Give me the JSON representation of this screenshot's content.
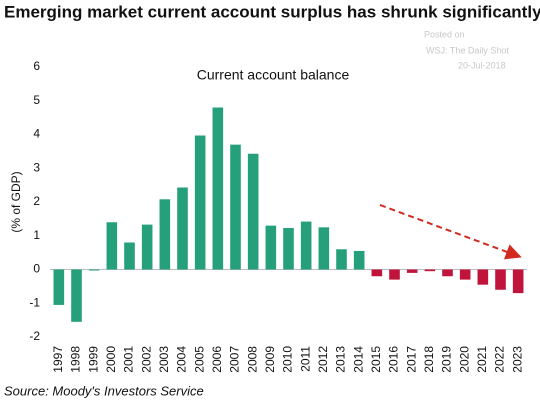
{
  "chart_data": {
    "type": "bar",
    "title": "Emerging market current account surplus has shrunk significantly",
    "subtitle": "Current account balance",
    "notes": [
      "Posted on",
      "WSJ: The Daily Shot",
      "20-Jul-2018"
    ],
    "ylabel": "(% of GDP)",
    "source": "Source: Moody's Investors Service",
    "categories": [
      "1997",
      "1998",
      "1999",
      "2000",
      "2001",
      "2002",
      "2003",
      "2004",
      "2005",
      "2006",
      "2007",
      "2008",
      "2009",
      "2010",
      "2011",
      "2012",
      "2013",
      "2014",
      "2015",
      "2016",
      "2017",
      "2018",
      "2019",
      "2020",
      "2021",
      "2022",
      "2023"
    ],
    "values": [
      -1.05,
      -1.55,
      -0.03,
      1.4,
      0.8,
      1.33,
      2.08,
      2.43,
      3.97,
      4.8,
      3.7,
      3.43,
      1.3,
      1.23,
      1.42,
      1.25,
      0.6,
      0.55,
      -0.2,
      -0.3,
      -0.1,
      -0.05,
      -0.2,
      -0.3,
      -0.45,
      -0.6,
      -0.7
    ],
    "colors": [
      "#26a07a",
      "#26a07a",
      "#26a07a",
      "#26a07a",
      "#26a07a",
      "#26a07a",
      "#26a07a",
      "#26a07a",
      "#26a07a",
      "#26a07a",
      "#26a07a",
      "#26a07a",
      "#26a07a",
      "#26a07a",
      "#26a07a",
      "#26a07a",
      "#26a07a",
      "#26a07a",
      "#c0143c",
      "#c0143c",
      "#c0143c",
      "#c0143c",
      "#c0143c",
      "#c0143c",
      "#c0143c",
      "#c0143c",
      "#c0143c"
    ],
    "ylim": [
      -2,
      6
    ],
    "yticks": [
      -2,
      -1,
      0,
      1,
      2,
      3,
      4,
      5,
      6
    ],
    "grid": false
  }
}
